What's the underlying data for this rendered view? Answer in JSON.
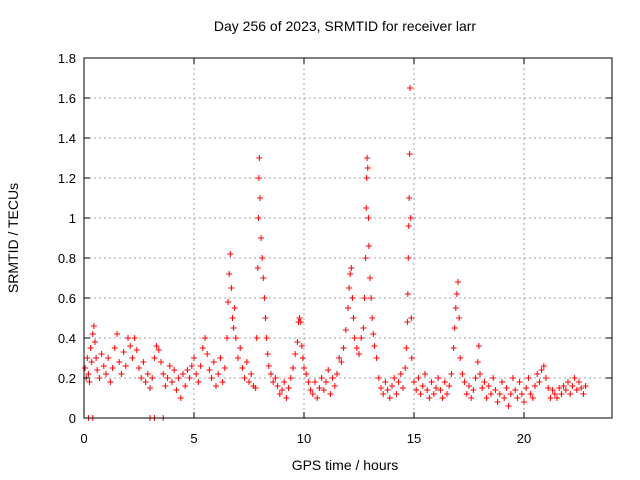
{
  "chart_data": {
    "type": "scatter",
    "title": "Day 256 of 2023, SRMTID for receiver larr",
    "xlabel": "GPS time / hours",
    "ylabel": "SRMTID / TECUs",
    "xlim": [
      0,
      24
    ],
    "ylim": [
      0,
      1.8
    ],
    "grid": true,
    "x_ticks": [
      "0",
      "5",
      "10",
      "15",
      "20"
    ],
    "y_ticks": [
      "0",
      "0.2",
      "0.4",
      "0.6",
      "0.8",
      "1",
      "1.2",
      "1.4",
      "1.6",
      "1.8"
    ],
    "series": [
      {
        "name": "SRMTID",
        "color": "#ff0000",
        "marker": "plus",
        "points": [
          [
            0.05,
            0.25
          ],
          [
            0.1,
            0.2
          ],
          [
            0.15,
            0.3
          ],
          [
            0.2,
            0.22
          ],
          [
            0.25,
            0.18
          ],
          [
            0.3,
            0.35
          ],
          [
            0.35,
            0.28
          ],
          [
            0.4,
            0.42
          ],
          [
            0.45,
            0.46
          ],
          [
            0.5,
            0.38
          ],
          [
            0.55,
            0.3
          ],
          [
            0.6,
            0.24
          ],
          [
            0.7,
            0.2
          ],
          [
            0.8,
            0.32
          ],
          [
            0.9,
            0.26
          ],
          [
            1.0,
            0.22
          ],
          [
            1.1,
            0.3
          ],
          [
            1.2,
            0.18
          ],
          [
            1.3,
            0.25
          ],
          [
            1.4,
            0.35
          ],
          [
            1.5,
            0.42
          ],
          [
            1.6,
            0.28
          ],
          [
            1.7,
            0.22
          ],
          [
            1.8,
            0.33
          ],
          [
            1.9,
            0.26
          ],
          [
            2.0,
            0.4
          ],
          [
            2.1,
            0.36
          ],
          [
            2.2,
            0.3
          ],
          [
            2.3,
            0.4
          ],
          [
            2.4,
            0.34
          ],
          [
            2.5,
            0.25
          ],
          [
            2.6,
            0.2
          ],
          [
            2.7,
            0.28
          ],
          [
            2.8,
            0.18
          ],
          [
            2.9,
            0.22
          ],
          [
            3.0,
            0.15
          ],
          [
            3.1,
            0.2
          ],
          [
            3.2,
            0.3
          ],
          [
            3.3,
            0.36
          ],
          [
            3.4,
            0.34
          ],
          [
            3.5,
            0.28
          ],
          [
            3.6,
            0.22
          ],
          [
            3.7,
            0.16
          ],
          [
            3.8,
            0.2
          ],
          [
            3.9,
            0.26
          ],
          [
            4.0,
            0.18
          ],
          [
            4.1,
            0.24
          ],
          [
            4.2,
            0.14
          ],
          [
            4.3,
            0.2
          ],
          [
            4.4,
            0.1
          ],
          [
            4.5,
            0.22
          ],
          [
            4.6,
            0.16
          ],
          [
            4.7,
            0.24
          ],
          [
            4.8,
            0.2
          ],
          [
            4.9,
            0.26
          ],
          [
            5.0,
            0.3
          ],
          [
            5.1,
            0.22
          ],
          [
            5.2,
            0.18
          ],
          [
            5.3,
            0.26
          ],
          [
            5.4,
            0.35
          ],
          [
            5.5,
            0.4
          ],
          [
            5.6,
            0.32
          ],
          [
            5.7,
            0.24
          ],
          [
            5.8,
            0.2
          ],
          [
            5.9,
            0.28
          ],
          [
            6.0,
            0.16
          ],
          [
            6.1,
            0.22
          ],
          [
            6.2,
            0.3
          ],
          [
            6.3,
            0.18
          ],
          [
            6.4,
            0.25
          ],
          [
            6.5,
            0.4
          ],
          [
            6.55,
            0.58
          ],
          [
            6.6,
            0.72
          ],
          [
            6.65,
            0.82
          ],
          [
            6.7,
            0.65
          ],
          [
            6.75,
            0.5
          ],
          [
            6.8,
            0.45
          ],
          [
            6.85,
            0.55
          ],
          [
            6.9,
            0.4
          ],
          [
            7.0,
            0.3
          ],
          [
            7.1,
            0.35
          ],
          [
            7.2,
            0.25
          ],
          [
            7.3,
            0.2
          ],
          [
            7.4,
            0.28
          ],
          [
            7.5,
            0.18
          ],
          [
            7.6,
            0.22
          ],
          [
            7.7,
            0.16
          ],
          [
            7.8,
            0.15
          ],
          [
            7.85,
            0.4
          ],
          [
            7.9,
            0.75
          ],
          [
            7.93,
            1.0
          ],
          [
            7.95,
            1.2
          ],
          [
            7.97,
            1.3
          ],
          [
            8.0,
            1.1
          ],
          [
            8.05,
            0.9
          ],
          [
            8.1,
            0.8
          ],
          [
            8.15,
            0.7
          ],
          [
            8.2,
            0.6
          ],
          [
            8.25,
            0.5
          ],
          [
            8.3,
            0.4
          ],
          [
            8.35,
            0.32
          ],
          [
            8.4,
            0.26
          ],
          [
            8.5,
            0.22
          ],
          [
            8.6,
            0.18
          ],
          [
            8.7,
            0.2
          ],
          [
            8.8,
            0.16
          ],
          [
            8.9,
            0.12
          ],
          [
            9.0,
            0.14
          ],
          [
            9.1,
            0.18
          ],
          [
            9.2,
            0.1
          ],
          [
            9.3,
            0.15
          ],
          [
            9.4,
            0.2
          ],
          [
            9.5,
            0.25
          ],
          [
            9.6,
            0.32
          ],
          [
            9.7,
            0.38
          ],
          [
            9.75,
            0.48
          ],
          [
            9.8,
            0.5
          ],
          [
            9.85,
            0.48
          ],
          [
            9.9,
            0.36
          ],
          [
            9.95,
            0.3
          ],
          [
            10.0,
            0.25
          ],
          [
            10.1,
            0.22
          ],
          [
            10.2,
            0.18
          ],
          [
            10.3,
            0.14
          ],
          [
            10.4,
            0.12
          ],
          [
            10.5,
            0.18
          ],
          [
            10.6,
            0.1
          ],
          [
            10.7,
            0.15
          ],
          [
            10.8,
            0.2
          ],
          [
            10.9,
            0.14
          ],
          [
            11.0,
            0.18
          ],
          [
            11.1,
            0.24
          ],
          [
            11.2,
            0.12
          ],
          [
            11.3,
            0.2
          ],
          [
            11.4,
            0.16
          ],
          [
            11.5,
            0.22
          ],
          [
            11.6,
            0.3
          ],
          [
            11.7,
            0.28
          ],
          [
            11.8,
            0.35
          ],
          [
            11.9,
            0.44
          ],
          [
            12.0,
            0.55
          ],
          [
            12.05,
            0.65
          ],
          [
            12.1,
            0.72
          ],
          [
            12.15,
            0.75
          ],
          [
            12.2,
            0.6
          ],
          [
            12.25,
            0.5
          ],
          [
            12.3,
            0.4
          ],
          [
            12.4,
            0.35
          ],
          [
            12.5,
            0.32
          ],
          [
            12.6,
            0.4
          ],
          [
            12.7,
            0.45
          ],
          [
            12.75,
            0.6
          ],
          [
            12.8,
            0.8
          ],
          [
            12.83,
            1.05
          ],
          [
            12.85,
            1.2
          ],
          [
            12.87,
            1.3
          ],
          [
            12.9,
            1.25
          ],
          [
            12.93,
            1.0
          ],
          [
            12.95,
            0.86
          ],
          [
            13.0,
            0.7
          ],
          [
            13.05,
            0.6
          ],
          [
            13.1,
            0.5
          ],
          [
            13.15,
            0.42
          ],
          [
            13.2,
            0.36
          ],
          [
            13.3,
            0.3
          ],
          [
            13.4,
            0.2
          ],
          [
            13.5,
            0.15
          ],
          [
            13.6,
            0.12
          ],
          [
            13.7,
            0.18
          ],
          [
            13.8,
            0.14
          ],
          [
            13.9,
            0.1
          ],
          [
            14.0,
            0.16
          ],
          [
            14.1,
            0.2
          ],
          [
            14.2,
            0.12
          ],
          [
            14.3,
            0.18
          ],
          [
            14.4,
            0.22
          ],
          [
            14.5,
            0.15
          ],
          [
            14.6,
            0.25
          ],
          [
            14.65,
            0.35
          ],
          [
            14.7,
            0.48
          ],
          [
            14.72,
            0.62
          ],
          [
            14.74,
            0.8
          ],
          [
            14.76,
            0.96
          ],
          [
            14.78,
            1.1
          ],
          [
            14.8,
            1.32
          ],
          [
            14.82,
            1.65
          ],
          [
            14.85,
            1.0
          ],
          [
            14.88,
            0.5
          ],
          [
            14.9,
            0.3
          ],
          [
            15.0,
            0.18
          ],
          [
            15.1,
            0.14
          ],
          [
            15.2,
            0.2
          ],
          [
            15.3,
            0.12
          ],
          [
            15.4,
            0.16
          ],
          [
            15.5,
            0.22
          ],
          [
            15.6,
            0.14
          ],
          [
            15.7,
            0.1
          ],
          [
            15.8,
            0.18
          ],
          [
            15.9,
            0.12
          ],
          [
            16.0,
            0.15
          ],
          [
            16.1,
            0.2
          ],
          [
            16.2,
            0.14
          ],
          [
            16.3,
            0.1
          ],
          [
            16.4,
            0.18
          ],
          [
            16.5,
            0.12
          ],
          [
            16.6,
            0.16
          ],
          [
            16.7,
            0.22
          ],
          [
            16.8,
            0.35
          ],
          [
            16.85,
            0.45
          ],
          [
            16.9,
            0.55
          ],
          [
            16.95,
            0.62
          ],
          [
            17.0,
            0.68
          ],
          [
            17.05,
            0.5
          ],
          [
            17.1,
            0.3
          ],
          [
            17.2,
            0.22
          ],
          [
            17.3,
            0.18
          ],
          [
            17.4,
            0.12
          ],
          [
            17.5,
            0.16
          ],
          [
            17.6,
            0.1
          ],
          [
            17.7,
            0.14
          ],
          [
            17.8,
            0.2
          ],
          [
            17.9,
            0.28
          ],
          [
            17.95,
            0.36
          ],
          [
            18.0,
            0.22
          ],
          [
            18.1,
            0.15
          ],
          [
            18.2,
            0.18
          ],
          [
            18.3,
            0.1
          ],
          [
            18.4,
            0.16
          ],
          [
            18.5,
            0.12
          ],
          [
            18.6,
            0.2
          ],
          [
            18.7,
            0.14
          ],
          [
            18.8,
            0.08
          ],
          [
            18.9,
            0.12
          ],
          [
            19.0,
            0.18
          ],
          [
            19.1,
            0.1
          ],
          [
            19.2,
            0.15
          ],
          [
            19.3,
            0.06
          ],
          [
            19.4,
            0.12
          ],
          [
            19.5,
            0.2
          ],
          [
            19.6,
            0.14
          ],
          [
            19.7,
            0.1
          ],
          [
            19.8,
            0.18
          ],
          [
            19.9,
            0.12
          ],
          [
            20.0,
            0.08
          ],
          [
            20.1,
            0.15
          ],
          [
            20.2,
            0.2
          ],
          [
            20.3,
            0.12
          ],
          [
            20.4,
            0.1
          ],
          [
            20.5,
            0.16
          ],
          [
            20.6,
            0.22
          ],
          [
            20.7,
            0.18
          ],
          [
            20.8,
            0.24
          ],
          [
            20.9,
            0.26
          ],
          [
            21.0,
            0.2
          ],
          [
            21.1,
            0.15
          ],
          [
            21.2,
            0.1
          ],
          [
            21.3,
            0.14
          ],
          [
            21.4,
            0.12
          ],
          [
            21.5,
            0.1
          ],
          [
            21.6,
            0.15
          ],
          [
            21.7,
            0.12
          ],
          [
            21.8,
            0.16
          ],
          [
            21.9,
            0.14
          ],
          [
            22.0,
            0.18
          ],
          [
            22.1,
            0.12
          ],
          [
            22.2,
            0.16
          ],
          [
            22.3,
            0.2
          ],
          [
            22.4,
            0.14
          ],
          [
            22.5,
            0.18
          ],
          [
            22.6,
            0.15
          ],
          [
            22.7,
            0.12
          ],
          [
            22.8,
            0.16
          ],
          [
            0.2,
            0.0
          ],
          [
            0.4,
            0.0
          ],
          [
            3.0,
            0.0
          ],
          [
            3.2,
            0.0
          ],
          [
            3.6,
            0.0
          ]
        ]
      }
    ]
  }
}
